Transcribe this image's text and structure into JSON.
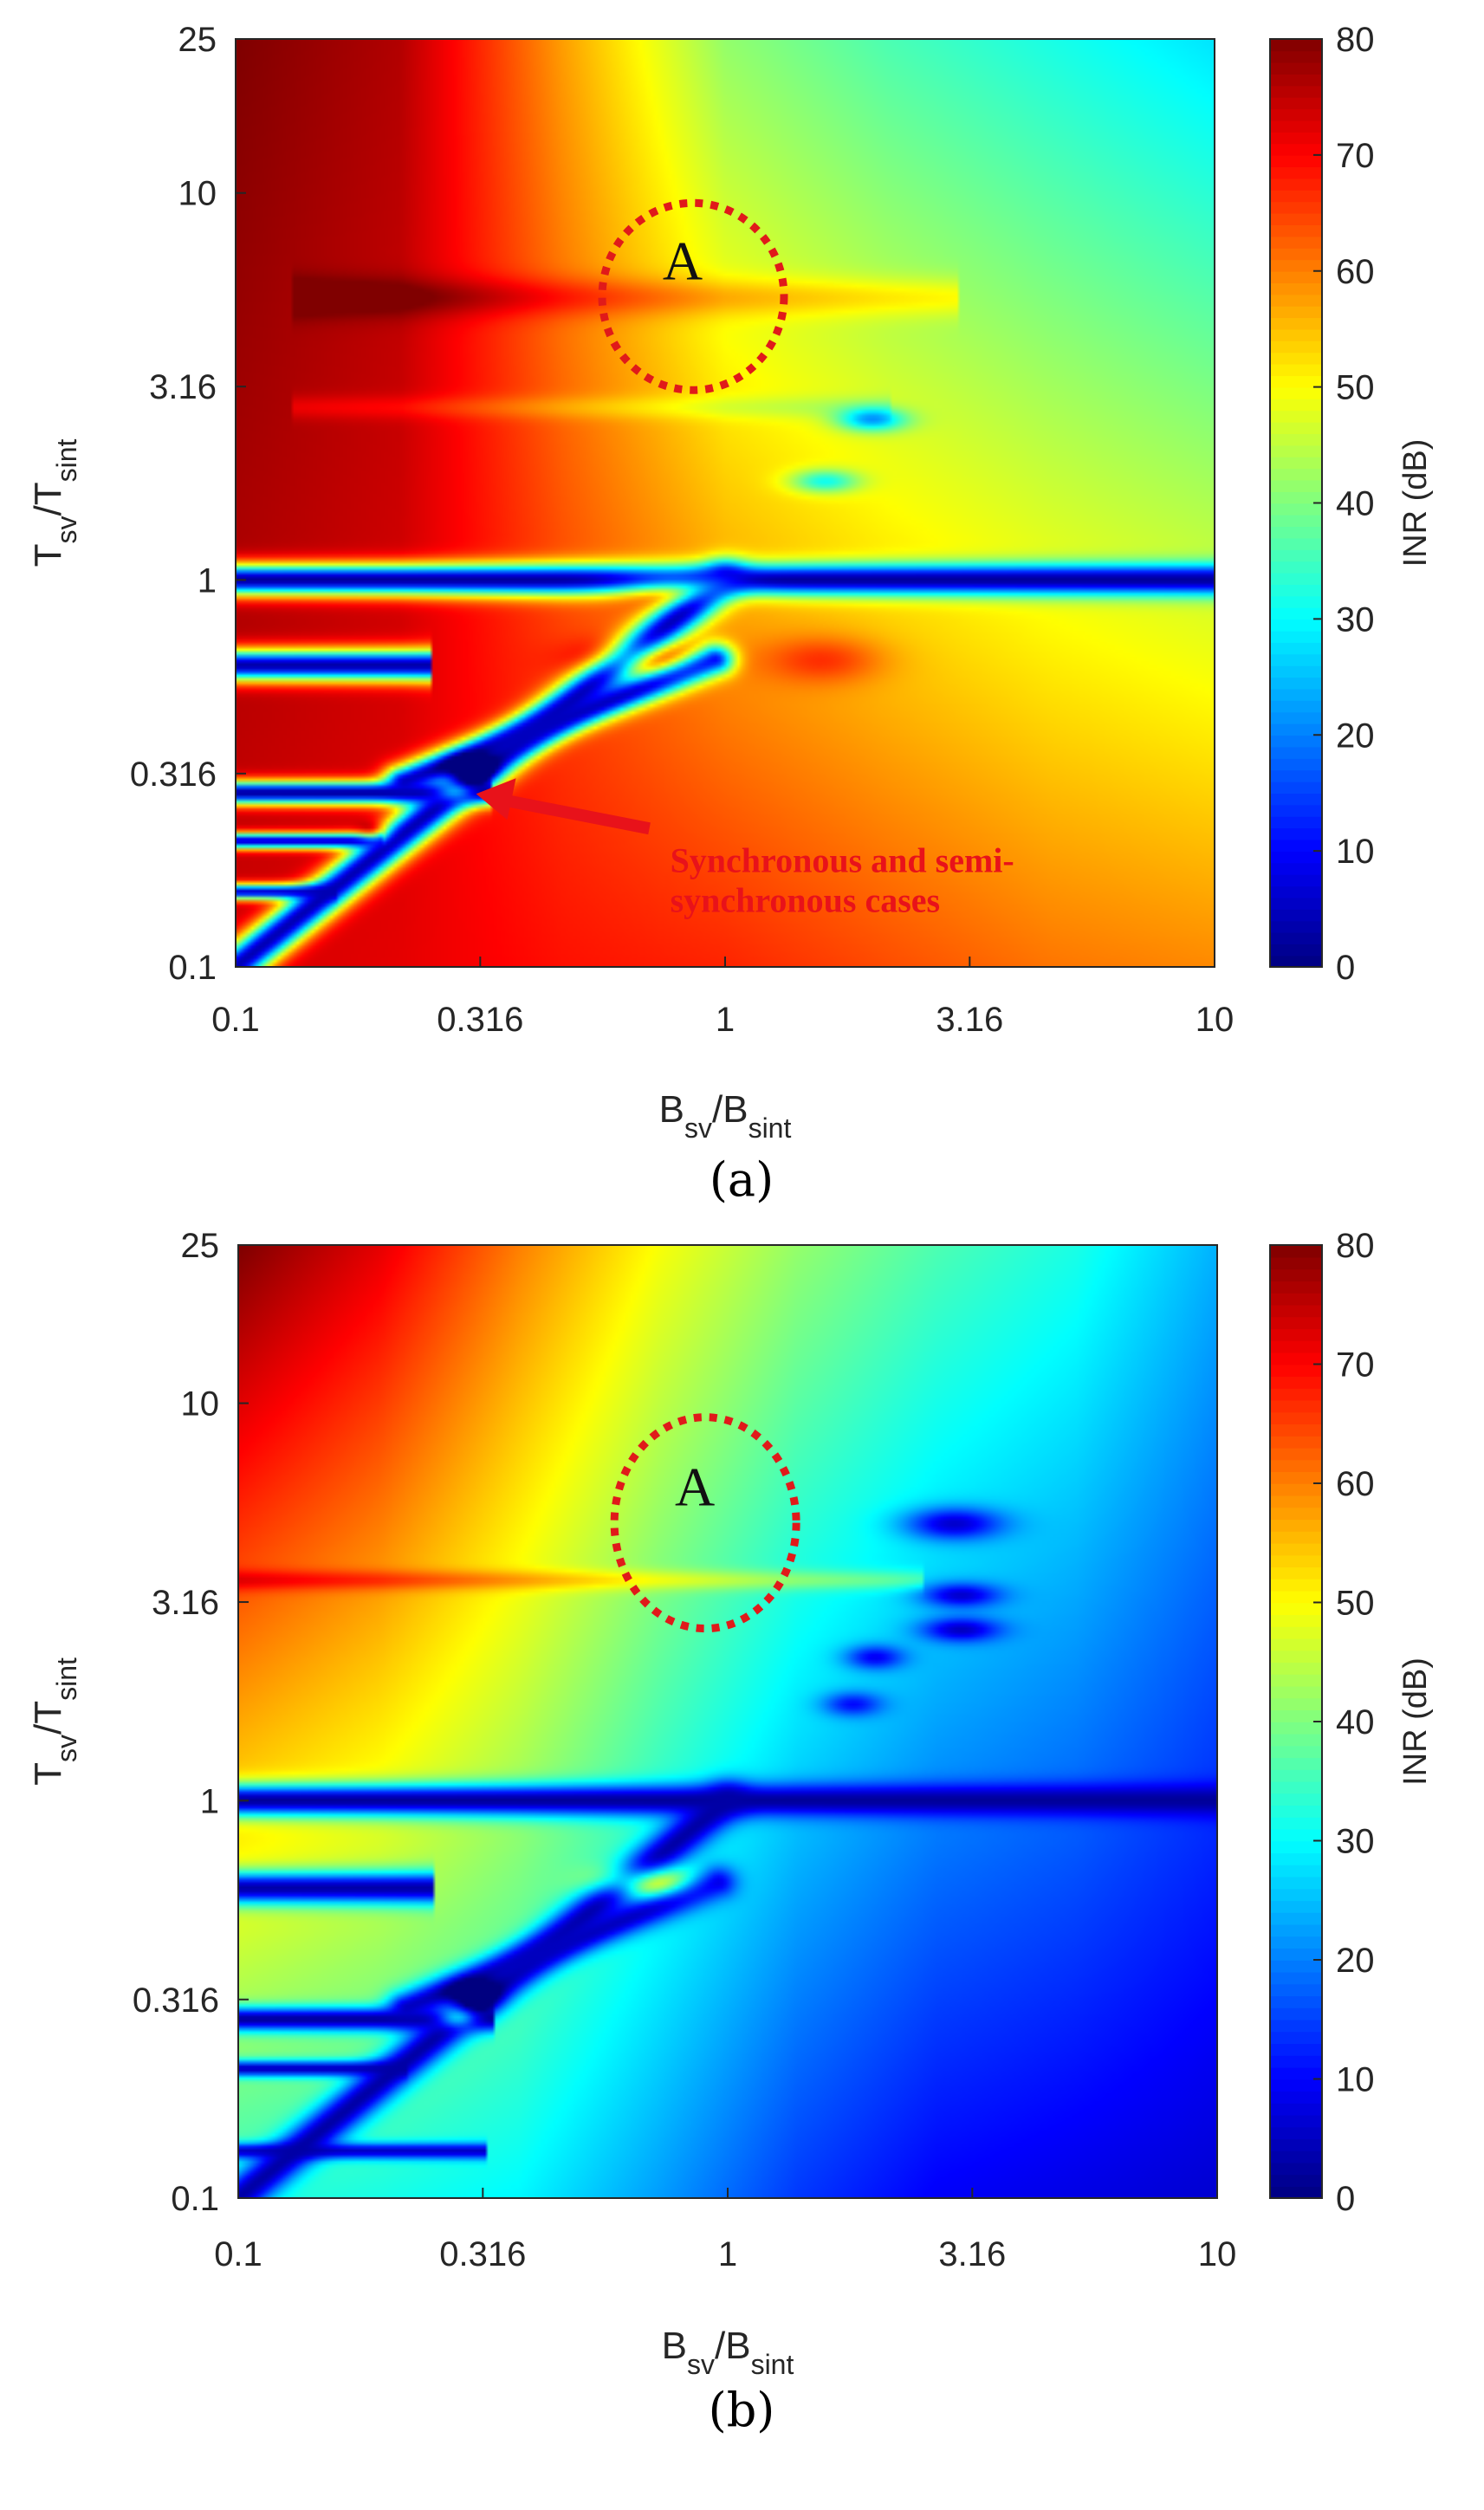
{
  "chart_data": [
    {
      "type": "heatmap",
      "panel_caption": "(a)",
      "xlabel": {
        "main": "B",
        "sub1": "sv",
        "slash": "/B",
        "sub2": "sint"
      },
      "ylabel": {
        "main": "T",
        "sub1": "sv",
        "slash": "/T",
        "sub2": "sint"
      },
      "x_scale": "log",
      "y_scale": "log",
      "xlim": [
        0.1,
        10
      ],
      "ylim": [
        0.1,
        25
      ],
      "x_ticks": [
        {
          "v": 0.1,
          "label": "0.1"
        },
        {
          "v": 0.316,
          "label": "0.316"
        },
        {
          "v": 1,
          "label": "1"
        },
        {
          "v": 3.16,
          "label": "3.16"
        },
        {
          "v": 10,
          "label": "10"
        }
      ],
      "y_ticks": [
        {
          "v": 0.1,
          "label": "0.1"
        },
        {
          "v": 0.316,
          "label": "0.316"
        },
        {
          "v": 1,
          "label": "1"
        },
        {
          "v": 3.16,
          "label": "3.16"
        },
        {
          "v": 10,
          "label": "10"
        },
        {
          "v": 25,
          "label": "25"
        }
      ],
      "colorbar": {
        "label": "INR (dB)",
        "range": [
          0,
          80
        ],
        "ticks": [
          0,
          10,
          20,
          30,
          40,
          50,
          60,
          70,
          80
        ],
        "colormap": "jet"
      },
      "annotations": [
        {
          "kind": "dashed-circle",
          "text": "A",
          "x": 0.86,
          "y": 5.4
        },
        {
          "kind": "arrow",
          "text_line1": "Synchronous and semi-",
          "text_line2": "synchronous cases",
          "target_x": 0.3,
          "target_y": 0.28
        }
      ],
      "field": {
        "base": [
          [
            1.0,
            0.92
          ],
          [
            0.95,
            0.9
          ],
          [
            0.72,
            0.86
          ],
          [
            0.52,
            0.84
          ],
          [
            0.45,
            0.8
          ],
          [
            0.4,
            0.76
          ],
          [
            0.35,
            0.74
          ]
        ],
        "features": [
          {
            "type": "hband",
            "y": 5.4,
            "sigma": 0.05,
            "x0": 0.13,
            "x1": 3.0,
            "delta": 8
          },
          {
            "type": "hband",
            "y": 2.8,
            "sigma": 0.03,
            "x0": 0.13,
            "x1": 2.2,
            "delta": -5
          },
          {
            "type": "hband",
            "y": 1.0,
            "sigma": 0.04,
            "x0": 0.1,
            "x1": 10,
            "level": 2
          },
          {
            "type": "hband",
            "y": 0.6,
            "sigma": 0.04,
            "x0": 0.1,
            "x1": 0.25,
            "level": 3
          },
          {
            "type": "hband",
            "y": 0.28,
            "sigma": 0.03,
            "x0": 0.1,
            "x1": 0.33,
            "level": 2
          },
          {
            "type": "hband",
            "y": 0.21,
            "sigma": 0.02,
            "x0": 0.1,
            "x1": 0.2,
            "level": 5
          },
          {
            "type": "hband",
            "y": 0.155,
            "sigma": 0.02,
            "x0": 0.1,
            "x1": 0.16,
            "level": 6
          },
          {
            "type": "line",
            "x0": 0.1,
            "y0": 0.1,
            "x1": 1.0,
            "y1": 1.0,
            "sigma": 0.045,
            "level": 4
          },
          {
            "type": "line",
            "x0": 0.22,
            "y0": 0.3,
            "x1": 0.95,
            "y1": 0.62,
            "sigma": 0.04,
            "level": 5
          },
          {
            "type": "blob",
            "x": 0.68,
            "y": 0.62,
            "sx": 0.12,
            "sy": 0.05,
            "delta": 22
          },
          {
            "type": "blob",
            "x": 0.78,
            "y": 0.95,
            "sx": 0.12,
            "sy": 0.04,
            "delta": 22
          },
          {
            "type": "blob",
            "x": 0.28,
            "y": 0.285,
            "sx": 0.04,
            "sy": 0.03,
            "delta": 22
          },
          {
            "type": "blob",
            "x": 0.19,
            "y": 0.22,
            "sx": 0.03,
            "sy": 0.025,
            "delta": 20
          },
          {
            "type": "blob",
            "x": 1.6,
            "y": 0.62,
            "sx": 0.12,
            "sy": 0.06,
            "delta": 10
          },
          {
            "type": "blob",
            "x": 2.0,
            "y": 2.6,
            "sx": 0.07,
            "sy": 0.03,
            "delta": -25
          },
          {
            "type": "blob",
            "x": 1.6,
            "y": 1.8,
            "sx": 0.07,
            "sy": 0.03,
            "delta": -20
          },
          {
            "type": "blob",
            "x": 0.3,
            "y": 0.32,
            "sx": 0.05,
            "sy": 0.04,
            "delta": -30
          }
        ]
      }
    },
    {
      "type": "heatmap",
      "panel_caption": "(b)",
      "xlabel": {
        "main": "B",
        "sub1": "sv",
        "slash": "/B",
        "sub2": "sint"
      },
      "ylabel": {
        "main": "T",
        "sub1": "sv",
        "slash": "/T",
        "sub2": "sint"
      },
      "x_scale": "log",
      "y_scale": "log",
      "xlim": [
        0.1,
        10
      ],
      "ylim": [
        0.1,
        25
      ],
      "x_ticks": [
        {
          "v": 0.1,
          "label": "0.1"
        },
        {
          "v": 0.316,
          "label": "0.316"
        },
        {
          "v": 1,
          "label": "1"
        },
        {
          "v": 3.16,
          "label": "3.16"
        },
        {
          "v": 10,
          "label": "10"
        }
      ],
      "y_ticks": [
        {
          "v": 0.1,
          "label": "0.1"
        },
        {
          "v": 0.316,
          "label": "0.316"
        },
        {
          "v": 1,
          "label": "1"
        },
        {
          "v": 3.16,
          "label": "3.16"
        },
        {
          "v": 10,
          "label": "10"
        },
        {
          "v": 25,
          "label": "25"
        }
      ],
      "colorbar": {
        "label": "INR (dB)",
        "range": [
          0,
          80
        ],
        "ticks": [
          0,
          10,
          20,
          30,
          40,
          50,
          60,
          70,
          80
        ],
        "colormap": "jet"
      },
      "annotations": [
        {
          "kind": "dashed-circle",
          "text": "A",
          "x": 0.9,
          "y": 5.0
        }
      ],
      "field": {
        "base": [
          [
            1.0,
            0.42
          ],
          [
            0.9,
            0.4
          ],
          [
            0.75,
            0.37
          ],
          [
            0.62,
            0.28
          ],
          [
            0.52,
            0.18
          ],
          [
            0.45,
            0.12
          ],
          [
            0.4,
            0.1
          ],
          [
            0.3,
            0.08
          ]
        ],
        "features": [
          {
            "type": "hband",
            "y": 3.6,
            "sigma": 0.025,
            "x0": 0.1,
            "x1": 2.5,
            "delta": 9
          },
          {
            "type": "hband",
            "y": 1.0,
            "sigma": 0.04,
            "x0": 0.1,
            "x1": 10,
            "level": 2
          },
          {
            "type": "hband",
            "y": 0.6,
            "sigma": 0.04,
            "x0": 0.1,
            "x1": 0.25,
            "level": 3
          },
          {
            "type": "hband",
            "y": 0.28,
            "sigma": 0.03,
            "x0": 0.1,
            "x1": 0.33,
            "level": 2
          },
          {
            "type": "hband",
            "y": 0.21,
            "sigma": 0.02,
            "x0": 0.1,
            "x1": 0.22,
            "level": 4
          },
          {
            "type": "hband",
            "y": 0.13,
            "sigma": 0.02,
            "x0": 0.1,
            "x1": 0.32,
            "level": 5
          },
          {
            "type": "line",
            "x0": 0.1,
            "y0": 0.1,
            "x1": 1.0,
            "y1": 1.0,
            "sigma": 0.045,
            "level": 3
          },
          {
            "type": "line",
            "x0": 0.22,
            "y0": 0.3,
            "x1": 0.95,
            "y1": 0.62,
            "sigma": 0.04,
            "level": 5
          },
          {
            "type": "blob",
            "x": 0.68,
            "y": 0.62,
            "sx": 0.1,
            "sy": 0.04,
            "delta": 28
          },
          {
            "type": "blob",
            "x": 0.28,
            "y": 0.285,
            "sx": 0.04,
            "sy": 0.03,
            "delta": 25
          },
          {
            "type": "blob",
            "x": 2.9,
            "y": 5.0,
            "sx": 0.1,
            "sy": 0.04,
            "delta": -22
          },
          {
            "type": "blob",
            "x": 3.0,
            "y": 3.3,
            "sx": 0.08,
            "sy": 0.03,
            "delta": -20
          },
          {
            "type": "blob",
            "x": 3.0,
            "y": 2.7,
            "sx": 0.08,
            "sy": 0.03,
            "delta": -20
          },
          {
            "type": "blob",
            "x": 2.0,
            "y": 2.3,
            "sx": 0.06,
            "sy": 0.03,
            "delta": -18
          },
          {
            "type": "blob",
            "x": 1.8,
            "y": 1.75,
            "sx": 0.06,
            "sy": 0.03,
            "delta": -16
          },
          {
            "type": "blob",
            "x": 0.3,
            "y": 0.32,
            "sx": 0.05,
            "sy": 0.04,
            "delta": -22
          }
        ]
      }
    }
  ]
}
